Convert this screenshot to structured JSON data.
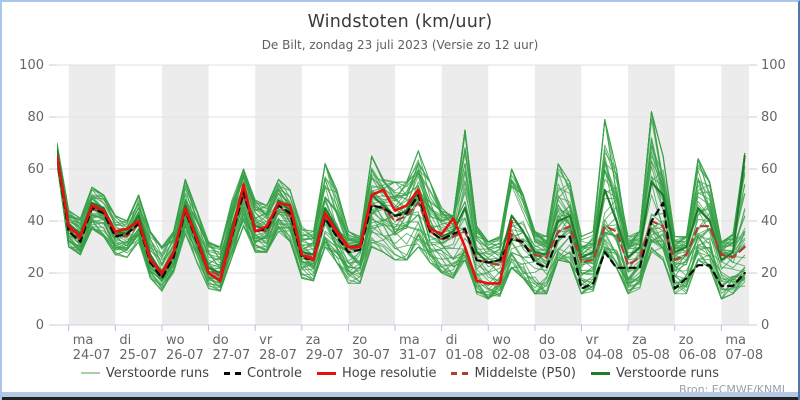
{
  "header": {
    "title": "Windstoten (km/uur)",
    "subtitle": "De Bilt, zondag 23 juli 2023 (Versie zo 12 uur)"
  },
  "source": "Bron: ECMWF/KNMI",
  "legend": {
    "items": [
      {
        "label": "Verstoorde runs",
        "style": "thin-green"
      },
      {
        "label": "Controle",
        "style": "black-dashed"
      },
      {
        "label": "Hoge resolutie",
        "style": "red-solid"
      },
      {
        "label": "Middelste (P50)",
        "style": "darkred-dashed"
      },
      {
        "label": "Verstoorde runs",
        "style": "green-thick"
      }
    ]
  },
  "colors": {
    "members": "#37a047",
    "members_legend": "#a8cfa8",
    "highlight": "#1e7b2a",
    "control": "#0a0a0a",
    "hres": "#e8100c",
    "p50": "#b23c34",
    "band": "#ececec",
    "grid": "#e2e2e2",
    "axis_line": "#c7d3e0",
    "day_tick": "#b5c2d6",
    "y_tick": "#cccccc",
    "axis_label": "#666666"
  },
  "chart_data": {
    "type": "line",
    "title": "Windstoten (km/uur)",
    "subtitle": "De Bilt, zondag 23 juli 2023 (Versie zo 12 uur)",
    "ylabel": "",
    "ylim": [
      0,
      100
    ],
    "yticks": [
      0,
      20,
      40,
      60,
      80,
      100
    ],
    "grid": true,
    "legend_position": "bottom",
    "x_axis": {
      "unit": "day",
      "tick_labels": [
        {
          "day": "ma",
          "date": "24-07"
        },
        {
          "day": "di",
          "date": "25-07"
        },
        {
          "day": "wo",
          "date": "26-07"
        },
        {
          "day": "do",
          "date": "27-07"
        },
        {
          "day": "vr",
          "date": "28-07"
        },
        {
          "day": "za",
          "date": "29-07"
        },
        {
          "day": "zo",
          "date": "30-07"
        },
        {
          "day": "ma",
          "date": "31-07"
        },
        {
          "day": "di",
          "date": "01-08"
        },
        {
          "day": "wo",
          "date": "02-08"
        },
        {
          "day": "do",
          "date": "03-08"
        },
        {
          "day": "vr",
          "date": "04-08"
        },
        {
          "day": "za",
          "date": "05-08"
        },
        {
          "day": "zo",
          "date": "06-08"
        },
        {
          "day": "ma",
          "date": "07-08"
        }
      ]
    },
    "step_hours": 6,
    "start_offset_hours": -6,
    "series": [
      {
        "name": "Verstoorde runs",
        "role": "ensemble",
        "count": 50,
        "min": [
          62,
          30,
          27,
          37,
          34,
          27,
          26,
          32,
          18,
          13,
          20,
          35,
          24,
          14,
          13,
          26,
          38,
          28,
          28,
          36,
          32,
          18,
          17,
          30,
          24,
          16,
          16,
          30,
          28,
          25,
          25,
          30,
          24,
          20,
          18,
          25,
          12,
          10,
          11,
          22,
          18,
          12,
          12,
          25,
          24,
          12,
          13,
          28,
          22,
          12,
          14,
          28,
          25,
          12,
          12,
          25,
          22,
          10,
          12,
          15
        ],
        "max": [
          70,
          44,
          41,
          53,
          50,
          42,
          40,
          50,
          36,
          30,
          36,
          56,
          44,
          32,
          30,
          48,
          60,
          48,
          46,
          56,
          52,
          38,
          36,
          62,
          52,
          36,
          34,
          65,
          56,
          55,
          55,
          67,
          55,
          45,
          42,
          75,
          38,
          32,
          34,
          60,
          50,
          36,
          34,
          62,
          55,
          34,
          36,
          79,
          60,
          34,
          36,
          82,
          65,
          34,
          34,
          64,
          55,
          32,
          35,
          66
        ]
      },
      {
        "name": "Middelste (P50)",
        "role": "p50",
        "values": [
          65,
          37,
          33,
          45,
          43,
          35,
          34,
          39,
          26,
          19,
          27,
          44,
          33,
          21,
          19,
          35,
          50,
          37,
          36,
          46,
          42,
          27,
          26,
          42,
          35,
          29,
          30,
          46,
          45,
          40,
          42,
          47,
          36,
          33,
          34,
          36,
          25,
          24,
          23,
          35,
          31,
          27,
          26,
          36,
          38,
          24,
          25,
          38,
          36,
          23,
          26,
          40,
          38,
          25,
          27,
          38,
          38,
          27,
          26,
          30
        ]
      },
      {
        "name": "Controle",
        "role": "control",
        "values": [
          64,
          36,
          32,
          45,
          43,
          34,
          35,
          39,
          24,
          18,
          26,
          44,
          32,
          20,
          17,
          34,
          51,
          36,
          37,
          46,
          43,
          26,
          25,
          41,
          34,
          28,
          29,
          46,
          45,
          42,
          43,
          50,
          36,
          33,
          35,
          37,
          25,
          24,
          25,
          33,
          32,
          24,
          22,
          34,
          34,
          14,
          16,
          28,
          22,
          22,
          22,
          40,
          47,
          14,
          18,
          23,
          23,
          15,
          15,
          20
        ]
      },
      {
        "name": "Hoge resolutie",
        "role": "hres",
        "values": [
          65,
          38,
          34,
          46,
          44,
          36,
          37,
          40,
          25,
          20,
          28,
          45,
          33,
          20,
          17,
          35,
          54,
          36,
          38,
          47,
          46,
          27,
          25,
          43,
          36,
          30,
          30,
          50,
          52,
          44,
          46,
          52,
          37,
          35,
          41,
          30,
          17,
          16,
          16,
          40
        ]
      },
      {
        "name": "Verstoorde runs",
        "role": "highlight",
        "values": [
          67,
          39,
          35,
          47,
          45,
          36,
          35,
          42,
          27,
          20,
          28,
          46,
          34,
          22,
          20,
          38,
          52,
          38,
          37,
          48,
          44,
          28,
          27,
          45,
          37,
          30,
          31,
          50,
          46,
          42,
          44,
          52,
          38,
          34,
          36,
          45,
          28,
          24,
          25,
          42,
          36,
          28,
          27,
          40,
          42,
          26,
          28,
          52,
          40,
          26,
          30,
          55,
          50,
          28,
          30,
          45,
          40,
          25,
          28,
          65
        ]
      }
    ],
    "source": "Bron: ECMWF/KNMI"
  }
}
